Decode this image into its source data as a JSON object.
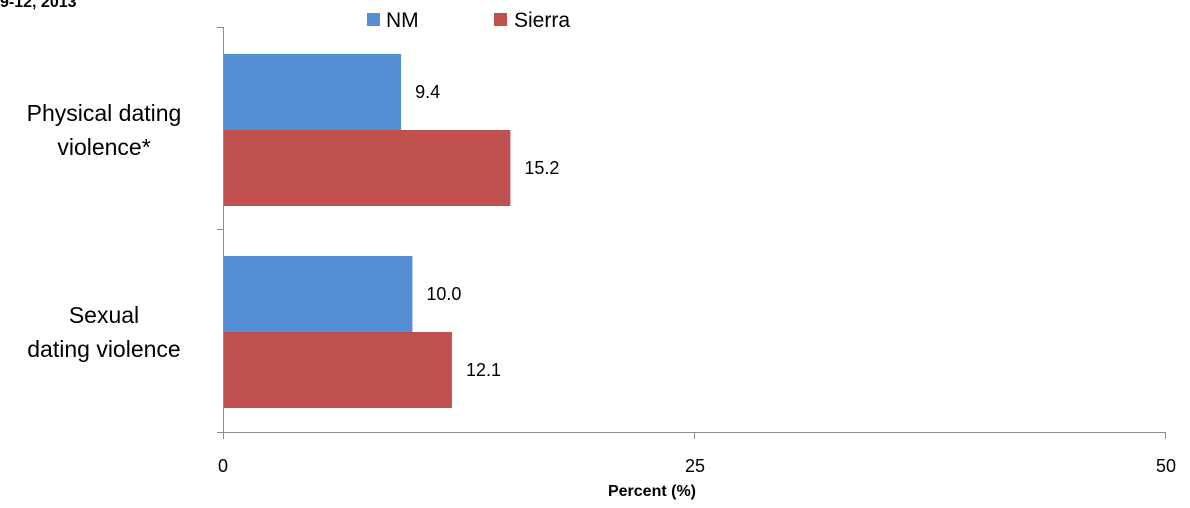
{
  "title_fragment": "9-12, 2013",
  "chart_data": {
    "type": "bar",
    "orientation": "horizontal",
    "categories": [
      [
        "Physical dating",
        "violence*"
      ],
      [
        "Sexual",
        "dating violence"
      ]
    ],
    "series": [
      {
        "name": "NM",
        "color": "#558ED5",
        "values": [
          9.4,
          10.0
        ],
        "labels": [
          "9.4",
          "10.0"
        ]
      },
      {
        "name": "Sierra",
        "color": "#C0504D",
        "values": [
          15.2,
          12.1
        ],
        "labels": [
          "15.2",
          "12.1"
        ]
      }
    ],
    "xlim": [
      0,
      50
    ],
    "xticks": [
      0,
      25,
      50
    ],
    "xlabel": "Percent (%)",
    "legend_position": "top"
  }
}
